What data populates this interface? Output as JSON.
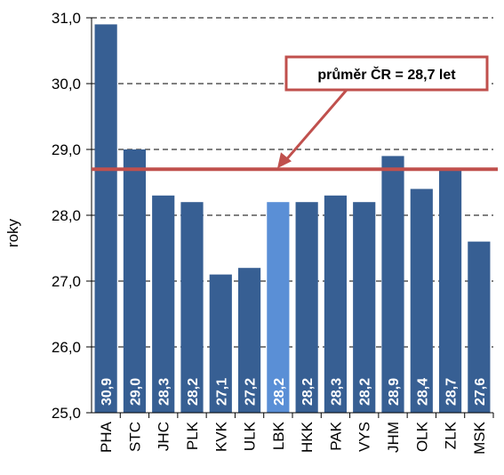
{
  "chart_data": {
    "type": "bar",
    "y_label": "roky",
    "categories": [
      "PHA",
      "STC",
      "JHC",
      "PLK",
      "KVK",
      "ULK",
      "LBK",
      "HKK",
      "PAK",
      "VYS",
      "JHM",
      "OLK",
      "ZLK",
      "MSK"
    ],
    "values": [
      30.9,
      29.0,
      28.3,
      28.2,
      27.1,
      27.2,
      28.2,
      28.2,
      28.3,
      28.2,
      28.9,
      28.4,
      28.7,
      27.6
    ],
    "value_labels": [
      "30,9",
      "29,0",
      "28,3",
      "28,2",
      "27,1",
      "27,2",
      "28,2",
      "28,2",
      "28,3",
      "28,2",
      "28,9",
      "28,4",
      "28,7",
      "27,6"
    ],
    "colors": [
      "#375f93",
      "#375f93",
      "#375f93",
      "#375f93",
      "#375f93",
      "#375f93",
      "#5a8fd6",
      "#375f93",
      "#375f93",
      "#375f93",
      "#375f93",
      "#375f93",
      "#375f93",
      "#375f93"
    ],
    "ylim": [
      25,
      31
    ],
    "yticks": [
      {
        "value": 25,
        "label": "25,0"
      },
      {
        "value": 26,
        "label": "26,0"
      },
      {
        "value": 27,
        "label": "27,0"
      },
      {
        "value": 28,
        "label": "28,0"
      },
      {
        "value": 29,
        "label": "29,0"
      },
      {
        "value": 30,
        "label": "30,0"
      },
      {
        "value": 31,
        "label": "31,0"
      }
    ],
    "grid": true,
    "average": {
      "value": 28.7,
      "label": "průměr ČR = 28,7 let",
      "color": "#c0504d"
    }
  }
}
